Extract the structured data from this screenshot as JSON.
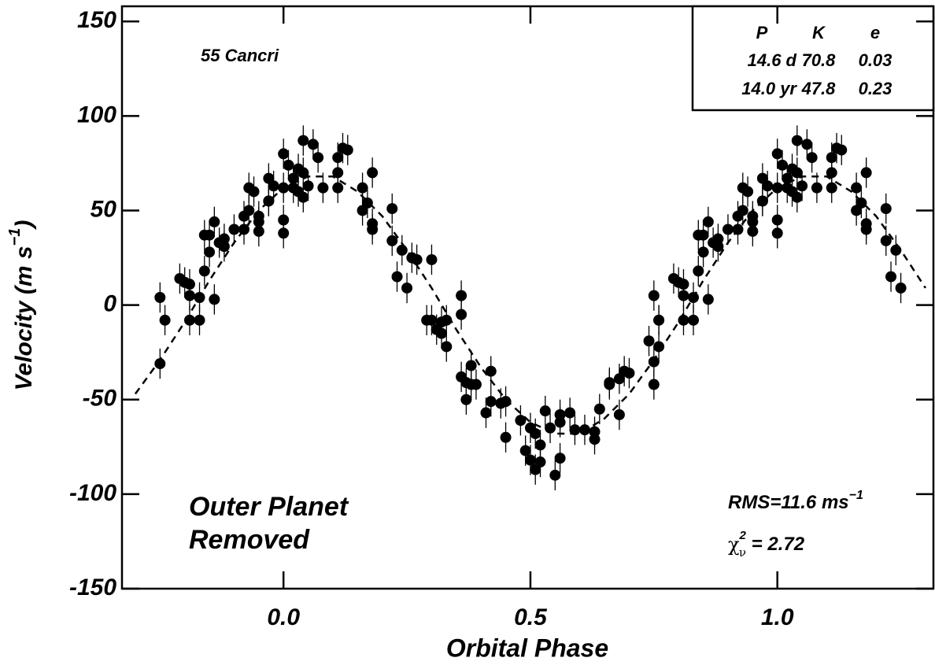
{
  "chart_data": {
    "type": "scatter",
    "title": "55 Cancri",
    "xlabel": "Orbital Phase",
    "ylabel": {
      "text": "Velocity  (m s",
      "sup": "−1",
      "end": ")"
    },
    "xlim": [
      -0.327,
      1.316
    ],
    "ylim": [
      -150,
      158
    ],
    "xticks": [
      {
        "value": 0,
        "label": "0.0"
      },
      {
        "value": 0.5,
        "label": "0.5"
      },
      {
        "value": 1,
        "label": "1.0"
      }
    ],
    "yticks": [
      150,
      100,
      50,
      0,
      -50,
      -100,
      -150
    ],
    "color": "#000000",
    "series": [
      {
        "color": "#000000",
        "error": 8,
        "x": [
          -0.25,
          -0.25,
          -0.24,
          -0.21,
          -0.2,
          -0.19,
          -0.19,
          -0.19,
          -0.17,
          -0.17,
          -0.16,
          -0.16,
          -0.15,
          -0.15,
          -0.14,
          -0.14,
          -0.13,
          -0.12,
          -0.12,
          -0.1,
          -0.08,
          -0.08,
          -0.07,
          -0.07,
          -0.06,
          -0.05,
          -0.05,
          -0.05,
          -0.03,
          -0.03,
          -0.03,
          -0.02,
          0.0,
          0.0,
          0.0,
          0.0,
          0.01,
          0.02,
          0.02,
          0.03,
          0.03,
          0.04,
          0.04,
          0.04,
          0.05,
          0.06,
          0.07,
          0.08,
          0.11,
          0.11,
          0.12,
          0.13,
          0.11,
          0.16,
          0.18,
          0.16,
          0.17,
          0.18,
          0.18,
          0.22,
          0.22,
          0.24,
          0.25,
          0.23,
          0.26,
          0.27,
          0.3,
          0.29,
          0.3,
          0.31,
          0.32,
          0.32,
          0.33,
          0.33,
          0.36,
          0.36,
          0.36,
          0.37,
          0.37,
          0.38,
          0.38,
          0.39,
          0.41,
          0.42,
          0.42,
          0.44,
          0.45,
          0.45,
          0.48,
          0.49,
          0.5,
          0.5,
          0.51,
          0.51,
          0.52,
          0.52,
          0.53,
          0.54,
          0.55,
          0.56,
          0.56,
          0.56,
          0.58,
          0.59,
          0.61,
          0.63,
          0.63,
          0.64,
          0.66,
          0.66,
          0.68,
          0.68,
          0.69,
          0.7,
          0.74,
          0.75,
          0.75,
          0.76,
          0.75,
          0.76,
          0.76,
          0.79,
          0.8,
          0.81,
          0.81,
          0.81,
          0.83,
          0.83,
          0.84,
          0.84,
          0.85,
          0.85,
          0.86,
          0.86,
          0.87,
          0.88,
          0.88,
          0.9,
          0.92,
          0.92,
          0.93,
          0.93,
          0.94,
          0.95,
          0.95,
          0.95,
          0.97,
          0.97,
          0.97,
          0.98,
          1.0,
          1.0,
          1.0,
          1.0,
          1.01,
          1.02,
          1.02,
          1.03,
          1.03,
          1.04,
          1.04,
          1.04,
          1.05,
          1.06,
          1.07,
          1.08,
          1.11,
          1.11,
          1.12,
          1.13,
          1.11,
          1.16,
          1.18,
          1.16,
          1.17,
          1.18,
          1.18,
          1.22,
          1.22,
          1.24,
          1.25,
          1.23
        ],
        "values": [
          4,
          -31,
          -8,
          14,
          12,
          11,
          5,
          -8,
          -8,
          4,
          18,
          37,
          37,
          28,
          44,
          3,
          33,
          35,
          31,
          40,
          47,
          40,
          62,
          50,
          60,
          47,
          39,
          44,
          55,
          55,
          67,
          63,
          38,
          45,
          80,
          62,
          74,
          62,
          67,
          72,
          60,
          87,
          57,
          70,
          63,
          85,
          78,
          62,
          78,
          62,
          83,
          82,
          70,
          62,
          70,
          50,
          54,
          40,
          43,
          51,
          34,
          29,
          9,
          15,
          25,
          24,
          24,
          -8,
          -8,
          -13,
          -15,
          -9,
          -22,
          -8,
          -38,
          5,
          -5,
          -41,
          -50,
          -42,
          -32,
          -42,
          -57,
          -35,
          -51,
          -52,
          -51,
          -70,
          -61,
          -77,
          -82,
          -65,
          -87,
          -68,
          -83,
          -74,
          -56,
          -65,
          -90,
          -62,
          -81,
          -58,
          -57,
          -66,
          -66,
          -67,
          -71,
          -55,
          -42,
          -41,
          -39,
          -58,
          -35,
          -36,
          -19,
          -42,
          -30,
          -22,
          5,
          -8,
          -8,
          14,
          12,
          11,
          5,
          -8,
          -8,
          4,
          18,
          37,
          37,
          28,
          44,
          3,
          33,
          35,
          31,
          40,
          47,
          40,
          62,
          50,
          60,
          47,
          39,
          44,
          55,
          55,
          67,
          63,
          38,
          45,
          80,
          62,
          74,
          62,
          67,
          72,
          60,
          87,
          57,
          70,
          63,
          85,
          78,
          62,
          78,
          62,
          83,
          82,
          70,
          62,
          70,
          50,
          54,
          40,
          43,
          51,
          34,
          29,
          9,
          15
        ]
      }
    ],
    "model": {
      "color": "#000000",
      "x": [
        -0.3,
        -0.25,
        -0.2,
        -0.15,
        -0.1,
        -0.05,
        0.0,
        0.05,
        0.1,
        0.15,
        0.2,
        0.25,
        0.3,
        0.35,
        0.4,
        0.45,
        0.5,
        0.55,
        0.6,
        0.65,
        0.7,
        0.75,
        0.8,
        0.85,
        0.9,
        0.95,
        1.0,
        1.05,
        1.1,
        1.15,
        1.2,
        1.25,
        1.3
      ],
      "values": [
        -47,
        -29,
        -9,
        13,
        33,
        50,
        62,
        68,
        68,
        60,
        47,
        29,
        9,
        -13,
        -33,
        -50,
        -62,
        -68,
        -68,
        -60,
        -47,
        -29,
        -9,
        13,
        33,
        50,
        62,
        68,
        68,
        60,
        47,
        29,
        9
      ]
    },
    "table": {
      "header": [
        "P",
        "K",
        "e"
      ],
      "rows": [
        [
          "14.6 d",
          "70.8",
          "0.03"
        ],
        [
          "14.0 yr",
          "47.8",
          "0.23"
        ]
      ]
    },
    "annotations": {
      "note": [
        "Outer Planet",
        "Removed"
      ],
      "rms": {
        "text": "RMS=11.6 ms",
        "sup": "−1"
      },
      "chi": {
        "symbol": "χ",
        "sup": "2",
        "sub": "ν",
        "text": " = 2.72"
      }
    }
  }
}
